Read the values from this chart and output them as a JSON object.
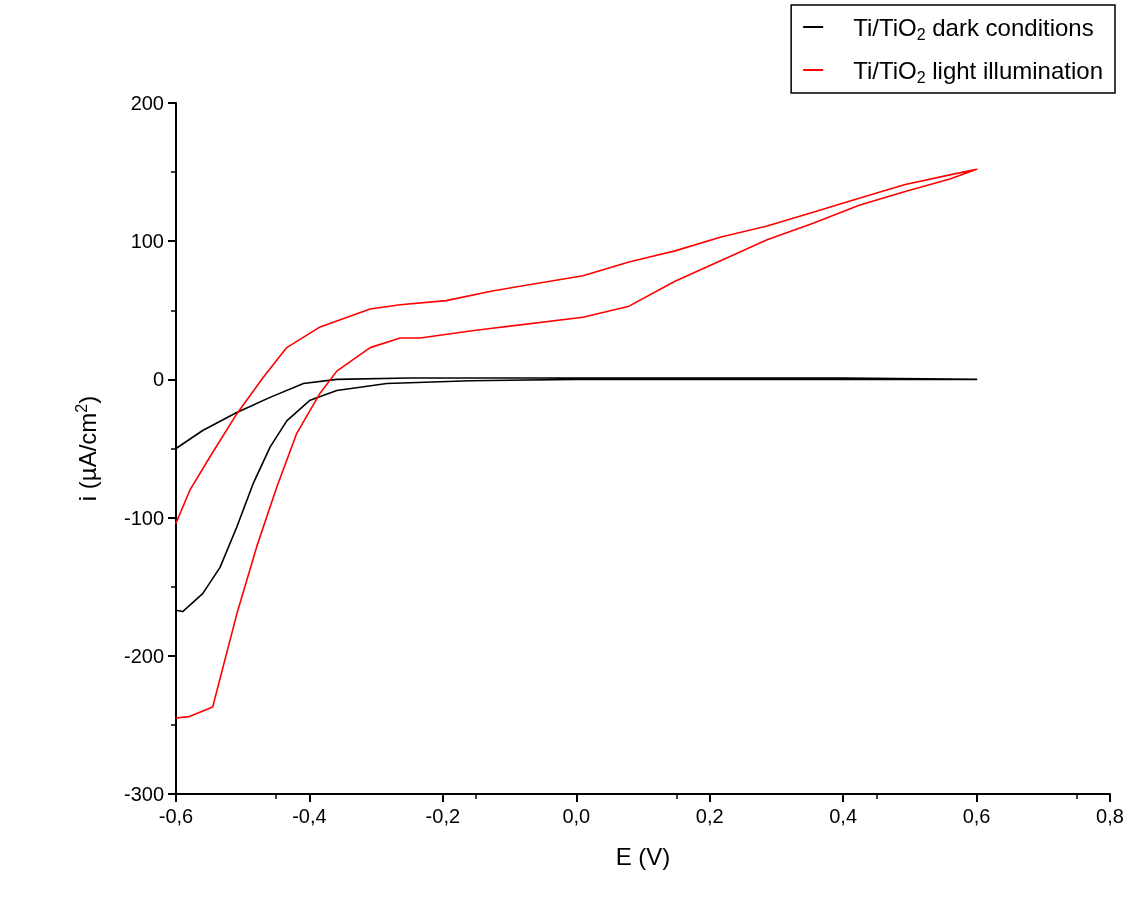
{
  "chart_data": {
    "type": "line",
    "xlabel": "E (V)",
    "ylabel": "i (µA/cm$^{2}$)",
    "xlim": [
      -0.6,
      0.8
    ],
    "xticks": [
      {
        "value": -0.6,
        "label": "-0,6"
      },
      {
        "value": -0.4,
        "label": "-0,4"
      },
      {
        "value": -0.2,
        "label": "-0,2"
      },
      {
        "value": 0,
        "label": "0,0"
      },
      {
        "value": 0.2,
        "label": "0,2"
      },
      {
        "value": 0.4,
        "label": "0,4"
      },
      {
        "value": 0.6,
        "label": "0,6"
      },
      {
        "value": 0.8,
        "label": "0,8"
      }
    ],
    "ylim": [
      -300,
      200
    ],
    "yticks": [
      -300,
      -200,
      -100,
      0,
      100,
      200
    ],
    "grid": false,
    "legend": "top right",
    "marker": "none",
    "line_style": "solid",
    "series": [
      {
        "name": "Ti/TiO$_{2}$ dark conditions",
        "color": "#000000",
        "x": [
          -0.6,
          -0.59,
          -0.56,
          -0.534,
          -0.509,
          -0.484,
          -0.459,
          -0.434,
          -0.399,
          -0.359,
          -0.284,
          -0.159,
          0.0,
          0.2,
          0.4,
          0.6,
          0.4,
          0.2,
          0.0,
          -0.1,
          -0.25,
          -0.359,
          -0.409,
          -0.459,
          -0.509,
          -0.56,
          -0.6
        ],
        "values": [
          -167,
          -168,
          -155,
          -136,
          -107,
          -75,
          -49,
          -30,
          -15,
          -8,
          -3,
          -1,
          0,
          0,
          0,
          0,
          1,
          1,
          1,
          1,
          1,
          0,
          -3,
          -13,
          -24,
          -37,
          -50
        ]
      },
      {
        "name": "Ti/TiO$_{2}$ light illumination",
        "color": "#ff0000",
        "x": [
          -0.6,
          -0.58,
          -0.545,
          -0.509,
          -0.479,
          -0.449,
          -0.419,
          -0.384,
          -0.359,
          -0.309,
          -0.264,
          -0.234,
          -0.159,
          -0.126,
          0.01,
          0.079,
          0.148,
          0.217,
          0.286,
          0.355,
          0.424,
          0.493,
          0.56,
          0.6,
          0.56,
          0.493,
          0.424,
          0.355,
          0.286,
          0.217,
          0.148,
          0.079,
          0.01,
          -0.126,
          -0.195,
          -0.264,
          -0.309,
          -0.384,
          -0.434,
          -0.47,
          -0.509,
          -0.549,
          -0.579,
          -0.6
        ],
        "values": [
          -245,
          -244,
          -237,
          -170,
          -121,
          -78,
          -39,
          -10,
          6,
          23,
          30,
          30,
          35,
          37,
          45,
          53,
          71,
          86,
          101,
          113,
          126,
          136,
          145,
          152,
          148,
          141,
          131,
          121,
          111,
          103,
          93,
          85,
          75,
          64,
          57,
          54,
          51,
          38,
          23,
          1,
          -25,
          -56,
          -80,
          -104
        ]
      }
    ]
  }
}
